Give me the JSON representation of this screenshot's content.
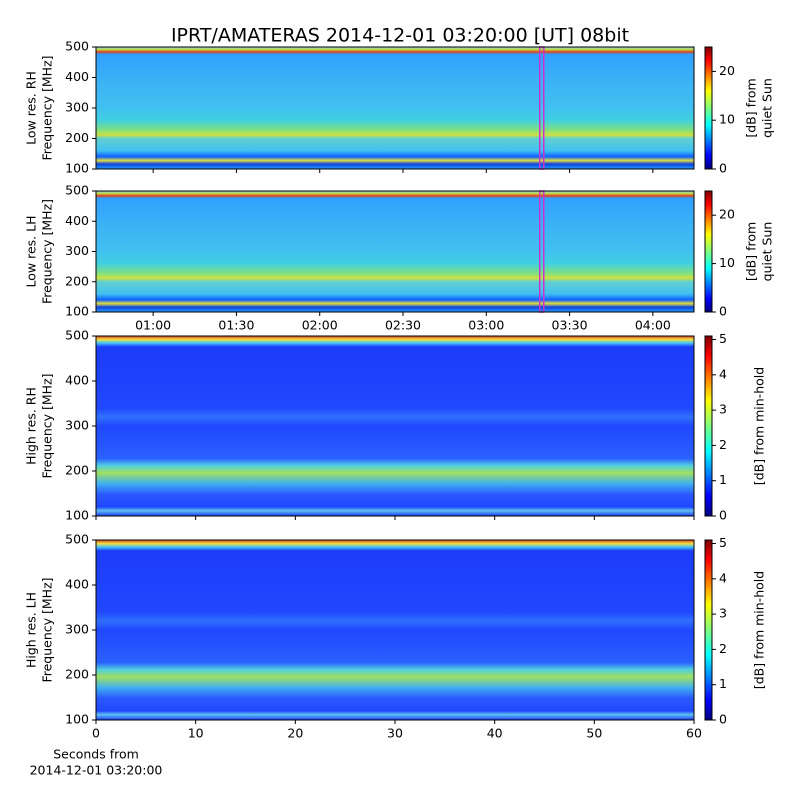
{
  "chart_data": [
    {
      "type": "heatmap",
      "title": "IPRT/AMATERAS 2014-12-01 03:20:00 [UT]   08bit",
      "ylabel": [
        "Low res. RH",
        "Frequency [MHz]"
      ],
      "ylim": [
        100,
        500
      ],
      "yticks": [
        100,
        200,
        300,
        400,
        500
      ],
      "xlim": [
        0.657,
        4.247
      ],
      "highlight_x": 3.333,
      "highlight_color": "#cc33cc",
      "colorbar_label": [
        "[dB] from",
        "quiet Sun"
      ],
      "clim": [
        0,
        25
      ],
      "cticks": [
        0,
        10,
        20
      ],
      "colormap": "jet"
    },
    {
      "type": "heatmap",
      "ylabel": [
        "Low res. LH",
        "Frequency [MHz]"
      ],
      "ylim": [
        100,
        500
      ],
      "yticks": [
        100,
        200,
        300,
        400,
        500
      ],
      "xlim": [
        0.657,
        4.247
      ],
      "highlight_x": 3.333,
      "highlight_color": "#cc33cc",
      "xticks": [
        {
          "value": 1,
          "label": "01:00"
        },
        {
          "value": 1.5,
          "label": "01:30"
        },
        {
          "value": 2,
          "label": "02:00"
        },
        {
          "value": 2.5,
          "label": "02:30"
        },
        {
          "value": 3,
          "label": "03:00"
        },
        {
          "value": 3.5,
          "label": "03:30"
        },
        {
          "value": 4,
          "label": "04:00"
        }
      ],
      "colorbar_label": [
        "[dB] from",
        "quiet Sun"
      ],
      "clim": [
        0,
        25
      ],
      "cticks": [
        0,
        10,
        20
      ],
      "colormap": "jet"
    },
    {
      "type": "heatmap",
      "ylabel": [
        "High res. RH",
        "Frequency [MHz]"
      ],
      "ylim": [
        100,
        500
      ],
      "yticks": [
        100,
        200,
        300,
        400,
        500
      ],
      "xlim": [
        0,
        60
      ],
      "colorbar_label": [
        "[dB] from min-hold"
      ],
      "clim": [
        0,
        5.1
      ],
      "cticks": [
        0,
        1,
        2,
        3,
        4,
        5
      ],
      "colormap": "jet"
    },
    {
      "type": "heatmap",
      "ylabel": [
        "High res. LH",
        "Frequency [MHz]"
      ],
      "ylim": [
        100,
        500
      ],
      "yticks": [
        100,
        200,
        300,
        400,
        500
      ],
      "xlim": [
        0,
        60
      ],
      "xticks": [
        0,
        10,
        20,
        30,
        40,
        50,
        60
      ],
      "xlabel": [
        "Seconds from",
        "2014-12-01 03:20:00"
      ],
      "colorbar_label": [
        "[dB] from min-hold"
      ],
      "clim": [
        0,
        5.1
      ],
      "cticks": [
        0,
        1,
        2,
        3,
        4,
        5
      ],
      "colormap": "jet"
    }
  ]
}
